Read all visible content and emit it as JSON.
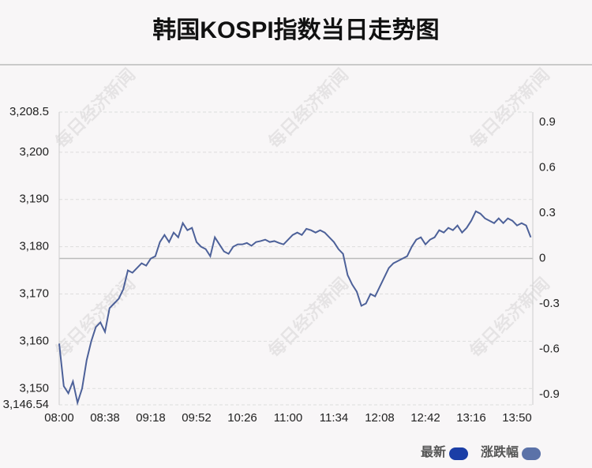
{
  "chart_data": {
    "type": "line",
    "title": "韩国KOSPI指数当日走势图",
    "watermark": "每日经济新闻",
    "categories": [
      "08:00",
      null,
      null,
      null,
      null,
      null,
      null,
      null,
      null,
      null,
      "08:38",
      null,
      null,
      null,
      null,
      null,
      null,
      null,
      null,
      null,
      "09:18",
      null,
      null,
      null,
      null,
      null,
      null,
      null,
      null,
      null,
      "09:52",
      null,
      null,
      null,
      null,
      null,
      null,
      null,
      null,
      null,
      "10:26",
      null,
      null,
      null,
      null,
      null,
      null,
      null,
      null,
      null,
      "11:00",
      null,
      null,
      null,
      null,
      null,
      null,
      null,
      null,
      null,
      "11:34",
      null,
      null,
      null,
      null,
      null,
      null,
      null,
      null,
      null,
      "12:08",
      null,
      null,
      null,
      null,
      null,
      null,
      null,
      null,
      null,
      "12:42",
      null,
      null,
      null,
      null,
      null,
      null,
      null,
      null,
      null,
      "13:16",
      null,
      null,
      null,
      null,
      null,
      null,
      null,
      null,
      null,
      "13:50",
      null,
      null,
      null
    ],
    "series": [
      {
        "name": "最新",
        "color": "#1b3ea6",
        "line_color": "#4d6199",
        "values": [
          3159.5,
          3150.5,
          3149,
          3151.5,
          3147,
          3150,
          3156,
          3160,
          3163,
          3164,
          3162,
          3167,
          3168,
          3169,
          3171,
          3175,
          3174.5,
          3175.5,
          3176.5,
          3176,
          3177.5,
          3178,
          3181,
          3182.5,
          3181,
          3183,
          3182,
          3185,
          3183.5,
          3184,
          3181,
          3180,
          3179.5,
          3178,
          3182,
          3180.5,
          3179,
          3178.5,
          3180,
          3180.5,
          3180.5,
          3180.8,
          3180.2,
          3181,
          3181.2,
          3181.5,
          3181,
          3181.2,
          3180.8,
          3180.5,
          3181.5,
          3182.5,
          3183,
          3182.5,
          3183.8,
          3183.5,
          3183,
          3183.5,
          3183,
          3182,
          3181,
          3179.5,
          3178.5,
          3174,
          3172,
          3170.5,
          3167.5,
          3168,
          3170,
          3169.5,
          3171.5,
          3173.5,
          3175.5,
          3176.5,
          3177,
          3177.5,
          3178,
          3180,
          3181.5,
          3182,
          3180.5,
          3181.5,
          3182,
          3183.5,
          3183,
          3184,
          3183.5,
          3184.5,
          3183,
          3184,
          3185.5,
          3187.5,
          3187,
          3186,
          3185.5,
          3185,
          3186,
          3185,
          3186,
          3185.5,
          3184.5,
          3185,
          3184.5,
          3182
        ]
      },
      {
        "name": "涨跌幅",
        "color": "#5b72a8",
        "axis": "y2"
      }
    ],
    "ylim": [
      3146.54,
      3208.5
    ],
    "yticks": [
      {
        "value": 3146.54,
        "label": "3,146.54"
      },
      {
        "value": 3150,
        "label": "3,150"
      },
      {
        "value": 3160,
        "label": "3,160"
      },
      {
        "value": 3170,
        "label": "3,170"
      },
      {
        "value": 3180,
        "label": "3,180"
      },
      {
        "value": 3190,
        "label": "3,190"
      },
      {
        "value": 3200,
        "label": "3,200"
      },
      {
        "value": 3208.5,
        "label": "3,208.5"
      }
    ],
    "y2lim": [
      -0.968,
      0.968
    ],
    "y2ticks": [
      -0.9,
      -0.6,
      -0.3,
      0,
      0.3,
      0.6,
      0.9
    ],
    "grid": true
  }
}
